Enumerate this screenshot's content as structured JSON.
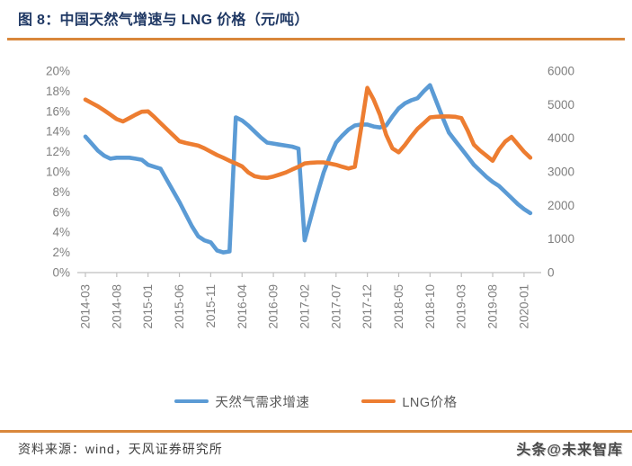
{
  "figure": {
    "title": "图 8：中国天然气增速与 LNG 价格（元/吨）",
    "source_note": "资料来源：wind，天风证券研究所",
    "watermark": "头条@未来智库"
  },
  "colors": {
    "title": "#1F3864",
    "divider_orange": "#D9873B",
    "axis_text": "#7F7F7F",
    "axis_line": "#BFBFBF",
    "legend_text": "#595959",
    "series_blue": "#5B9BD5",
    "series_orange": "#ED7D31"
  },
  "chart_data": {
    "type": "line",
    "grid": false,
    "legend_position": "bottom",
    "x_start": "2014-03",
    "x_step_months": 1,
    "x_tick_labels": [
      "2014-03",
      "2014-08",
      "2015-01",
      "2015-06",
      "2015-11",
      "2016-04",
      "2016-09",
      "2017-02",
      "2017-07",
      "2017-12",
      "2018-05",
      "2018-10",
      "2019-03",
      "2019-08",
      "2020-01"
    ],
    "left_axis": {
      "title": "天然气需求增速",
      "min": 0,
      "max": 20,
      "step": 2,
      "tick_labels_top_down": [
        "20%",
        "18%",
        "16%",
        "14%",
        "12%",
        "10%",
        "8%",
        "6%",
        "4%",
        "2%",
        "0%"
      ]
    },
    "right_axis": {
      "title": "LNG价格（元/吨）",
      "min": 0,
      "max": 6000,
      "step": 1000,
      "tick_labels_top_down": [
        "6000",
        "5000",
        "4000",
        "3000",
        "2000",
        "1000",
        "0"
      ]
    },
    "series": [
      {
        "name": "天然气需求增速",
        "axis": "left",
        "unit": "%",
        "color": "#5B9BD5",
        "values": [
          13.5,
          12.8,
          12.1,
          11.6,
          11.3,
          11.4,
          11.4,
          11.4,
          11.3,
          11.2,
          10.7,
          10.5,
          10.3,
          9.2,
          8.1,
          7.0,
          5.8,
          4.6,
          3.6,
          3.2,
          3.0,
          2.2,
          2.0,
          2.1,
          15.4,
          15.1,
          14.6,
          14.0,
          13.4,
          12.9,
          12.8,
          12.7,
          12.6,
          12.5,
          12.3,
          3.2,
          5.5,
          7.8,
          9.9,
          11.5,
          12.9,
          13.6,
          14.2,
          14.6,
          14.7,
          14.7,
          14.5,
          14.4,
          14.6,
          15.5,
          16.3,
          16.8,
          17.1,
          17.3,
          18.0,
          18.6,
          17.0,
          15.4,
          13.9,
          13.1,
          12.3,
          11.5,
          10.7,
          10.1,
          9.5,
          9.0,
          8.6,
          8.0,
          7.4,
          6.8,
          6.3,
          5.9
        ]
      },
      {
        "name": "LNG价格",
        "axis": "right",
        "unit": "元/吨",
        "color": "#ED7D31",
        "values": [
          5150,
          5050,
          4950,
          4830,
          4700,
          4570,
          4500,
          4600,
          4700,
          4790,
          4800,
          4630,
          4450,
          4270,
          4090,
          3910,
          3860,
          3820,
          3780,
          3700,
          3600,
          3500,
          3420,
          3330,
          3250,
          3160,
          2980,
          2870,
          2830,
          2820,
          2860,
          2920,
          2980,
          3070,
          3150,
          3250,
          3270,
          3280,
          3280,
          3250,
          3210,
          3150,
          3100,
          3150,
          4300,
          5500,
          5150,
          4700,
          4100,
          3700,
          3580,
          3800,
          4050,
          4280,
          4450,
          4620,
          4640,
          4650,
          4650,
          4640,
          4600,
          4230,
          3810,
          3630,
          3480,
          3330,
          3660,
          3900,
          4040,
          3820,
          3600,
          3420
        ]
      }
    ],
    "legend": [
      {
        "label": "天然气需求增速",
        "color": "#5B9BD5"
      },
      {
        "label": "LNG价格",
        "color": "#ED7D31"
      }
    ]
  }
}
